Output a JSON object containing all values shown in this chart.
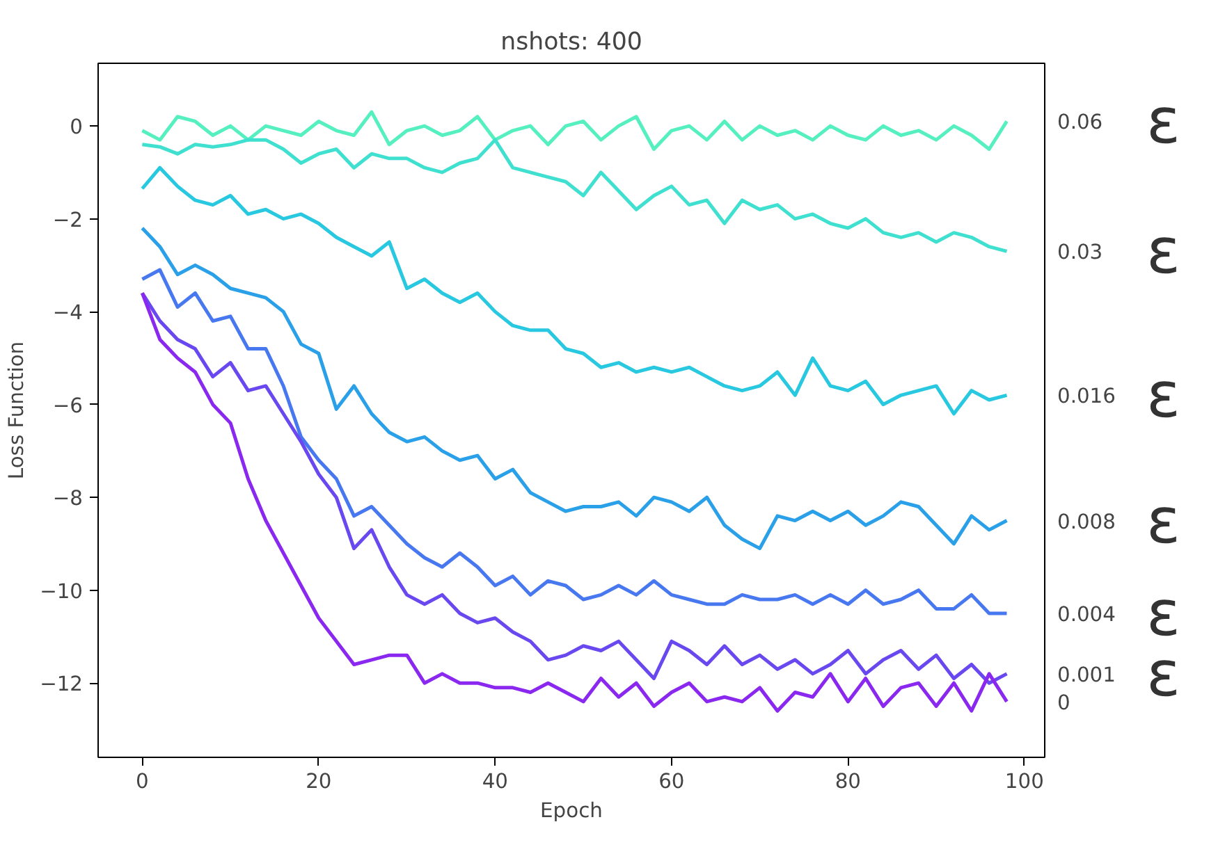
{
  "chart_data": {
    "type": "line",
    "title": "nshots: 400",
    "xlabel": "Epoch",
    "ylabel": "Loss Function",
    "x": [
      0,
      2,
      4,
      6,
      8,
      10,
      12,
      14,
      16,
      18,
      20,
      22,
      24,
      26,
      28,
      30,
      32,
      34,
      36,
      38,
      40,
      42,
      44,
      46,
      48,
      50,
      52,
      54,
      56,
      58,
      60,
      62,
      64,
      66,
      68,
      70,
      72,
      74,
      76,
      78,
      80,
      82,
      84,
      86,
      88,
      90,
      92,
      94,
      96,
      98
    ],
    "series": [
      {
        "name": "0.06",
        "color": "#56f0c0",
        "values": [
          -0.1,
          -0.3,
          0.2,
          0.1,
          -0.2,
          0,
          -0.3,
          0.0,
          -0.1,
          -0.2,
          0.1,
          -0.1,
          -0.2,
          0.3,
          -0.4,
          -0.1,
          0.0,
          -0.2,
          -0.1,
          0.2,
          -0.3,
          -0.1,
          0.0,
          -0.4,
          0.0,
          0.1,
          -0.3,
          0.0,
          0.2,
          -0.5,
          -0.1,
          0.0,
          -0.3,
          0.1,
          -0.3,
          0.0,
          -0.2,
          -0.1,
          -0.3,
          0.0,
          -0.2,
          -0.3,
          0.0,
          -0.2,
          -0.1,
          -0.3,
          0.0,
          -0.2,
          -0.5,
          0.1
        ]
      },
      {
        "name": "0.03",
        "color": "#40e0d0",
        "values": [
          -0.4,
          -0.45,
          -0.6,
          -0.4,
          -0.45,
          -0.4,
          -0.3,
          -0.3,
          -0.5,
          -0.8,
          -0.6,
          -0.5,
          -0.9,
          -0.6,
          -0.7,
          -0.7,
          -0.9,
          -1.0,
          -0.8,
          -0.7,
          -0.3,
          -0.9,
          -1.0,
          -1.1,
          -1.2,
          -1.5,
          -1.0,
          -1.4,
          -1.8,
          -1.5,
          -1.3,
          -1.7,
          -1.6,
          -2.1,
          -1.6,
          -1.8,
          -1.7,
          -2.0,
          -1.9,
          -2.1,
          -2.2,
          -2.0,
          -2.3,
          -2.4,
          -2.3,
          -2.5,
          -2.3,
          -2.4,
          -2.6,
          -2.7
        ]
      },
      {
        "name": "0.016",
        "color": "#28c8e0",
        "values": [
          -1.35,
          -0.9,
          -1.3,
          -1.6,
          -1.7,
          -1.5,
          -1.9,
          -1.8,
          -2.0,
          -1.9,
          -2.1,
          -2.4,
          -2.6,
          -2.8,
          -2.5,
          -3.5,
          -3.3,
          -3.6,
          -3.8,
          -3.6,
          -4.0,
          -4.3,
          -4.4,
          -4.4,
          -4.8,
          -4.9,
          -5.2,
          -5.1,
          -5.3,
          -5.2,
          -5.3,
          -5.2,
          -5.4,
          -5.6,
          -5.7,
          -5.6,
          -5.3,
          -5.8,
          -5.0,
          -5.6,
          -5.7,
          -5.5,
          -6.0,
          -5.8,
          -5.7,
          -5.6,
          -6.2,
          -5.7,
          -5.9,
          -5.8
        ]
      },
      {
        "name": "0.008",
        "color": "#2aa0e8",
        "values": [
          -2.2,
          -2.6,
          -3.2,
          -3.0,
          -3.2,
          -3.5,
          -3.6,
          -3.7,
          -4.0,
          -4.7,
          -4.9,
          -6.1,
          -5.6,
          -6.2,
          -6.6,
          -6.8,
          -6.7,
          -7.0,
          -7.2,
          -7.1,
          -7.6,
          -7.4,
          -7.9,
          -8.1,
          -8.3,
          -8.2,
          -8.2,
          -8.1,
          -8.4,
          -8.0,
          -8.1,
          -8.3,
          -8.0,
          -8.6,
          -8.9,
          -9.1,
          -8.4,
          -8.5,
          -8.3,
          -8.5,
          -8.3,
          -8.6,
          -8.4,
          -8.1,
          -8.2,
          -8.6,
          -9.0,
          -8.4,
          -8.7,
          -8.5
        ]
      },
      {
        "name": "0.004",
        "color": "#4878f0",
        "values": [
          -3.3,
          -3.1,
          -3.9,
          -3.6,
          -4.2,
          -4.1,
          -4.8,
          -4.8,
          -5.6,
          -6.7,
          -7.2,
          -7.6,
          -8.4,
          -8.2,
          -8.6,
          -9.0,
          -9.3,
          -9.5,
          -9.2,
          -9.5,
          -9.9,
          -9.7,
          -10.1,
          -9.8,
          -9.9,
          -10.2,
          -10.1,
          -9.9,
          -10.1,
          -9.8,
          -10.1,
          -10.2,
          -10.3,
          -10.3,
          -10.1,
          -10.2,
          -10.2,
          -10.1,
          -10.3,
          -10.1,
          -10.3,
          -10.0,
          -10.3,
          -10.2,
          -10.0,
          -10.4,
          -10.4,
          -10.1,
          -10.5,
          -10.5
        ]
      },
      {
        "name": "0.001",
        "color": "#6a48f0",
        "values": [
          -3.6,
          -4.2,
          -4.6,
          -4.8,
          -5.4,
          -5.1,
          -5.7,
          -5.6,
          -6.2,
          -6.8,
          -7.5,
          -8.0,
          -9.1,
          -8.7,
          -9.5,
          -10.1,
          -10.3,
          -10.1,
          -10.5,
          -10.7,
          -10.6,
          -10.9,
          -11.1,
          -11.5,
          -11.4,
          -11.2,
          -11.3,
          -11.1,
          -11.5,
          -11.9,
          -11.1,
          -11.3,
          -11.6,
          -11.2,
          -11.6,
          -11.4,
          -11.7,
          -11.5,
          -11.8,
          -11.6,
          -11.3,
          -11.8,
          -11.5,
          -11.3,
          -11.7,
          -11.4,
          -11.9,
          -11.6,
          -12.0,
          -11.8
        ]
      },
      {
        "name": "0",
        "color": "#8a28f0",
        "values": [
          -3.6,
          -4.6,
          -5.0,
          -5.3,
          -6.0,
          -6.4,
          -7.6,
          -8.5,
          -9.2,
          -9.9,
          -10.6,
          -11.1,
          -11.6,
          -11.5,
          -11.4,
          -11.4,
          -12.0,
          -11.8,
          -12.0,
          -12.0,
          -12.1,
          -12.1,
          -12.2,
          -12.0,
          -12.2,
          -12.4,
          -11.9,
          -12.3,
          -12.0,
          -12.5,
          -12.2,
          -12.0,
          -12.4,
          -12.3,
          -12.4,
          -12.1,
          -12.6,
          -12.2,
          -12.3,
          -11.8,
          -12.4,
          -11.9,
          -12.5,
          -12.1,
          -12.0,
          -12.5,
          -12.0,
          -12.6,
          -11.8,
          -12.4
        ]
      }
    ],
    "annotations": [
      "ε",
      "ε",
      "ε",
      "ε",
      "ε",
      "ε"
    ],
    "xlim": [
      -5,
      102.3
    ],
    "ylim": [
      -13.6,
      1.35
    ],
    "xticks": [
      0,
      20,
      40,
      60,
      80,
      100
    ],
    "yticks": [
      -12,
      -10,
      -8,
      -6,
      -4,
      -2,
      0
    ],
    "grid": false,
    "legend": false,
    "marker": "none",
    "line_style": "solid"
  }
}
